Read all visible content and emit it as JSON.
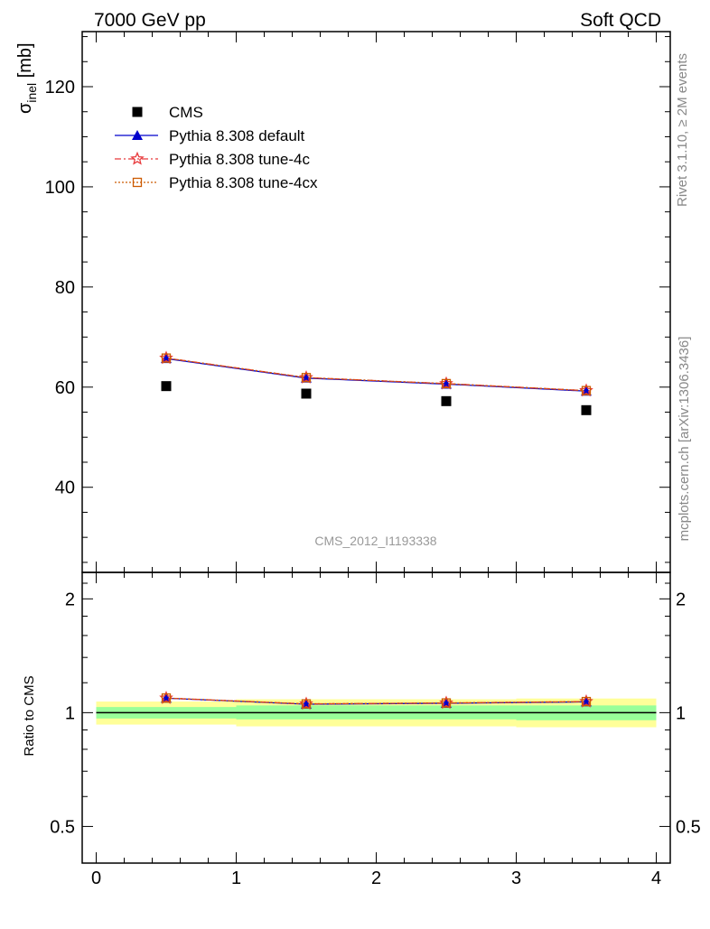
{
  "header": {
    "left": "7000 GeV pp",
    "right": "Soft QCD"
  },
  "side_labels": {
    "rivet": "Rivet 3.1.10, ≥ 2M events",
    "mcplots": "mcplots.cern.ch [arXiv:1306.3436]"
  },
  "analysis_id": "CMS_2012_I1193338",
  "colors": {
    "cms": "#000000",
    "default": "#0000cc",
    "tune4c": "#e8393b",
    "tune4cx": "#cc5a00",
    "band_outer": "#ffff99",
    "band_inner": "#99ff99"
  },
  "legend": [
    {
      "key": "cms",
      "label": "CMS"
    },
    {
      "key": "default",
      "label": "Pythia 8.308 default"
    },
    {
      "key": "tune4c",
      "label": "Pythia 8.308 tune-4c"
    },
    {
      "key": "tune4cx",
      "label": "Pythia 8.308 tune-4cx"
    }
  ],
  "chart_data": [
    {
      "type": "scatter",
      "panel": "main",
      "ylabel": "σinel [mb]",
      "ylabel_main": "σ",
      "ylabel_sub": "inel",
      "ylabel_unit": " [mb]",
      "xlim": [
        -0.1,
        4.1
      ],
      "ylim": [
        23,
        131
      ],
      "yticks": [
        40,
        60,
        80,
        100,
        120
      ],
      "xticks": [
        0,
        1,
        2,
        3,
        4
      ],
      "x": [
        0.5,
        1.5,
        2.5,
        3.5
      ],
      "series": [
        {
          "name": "CMS",
          "key": "cms",
          "values": [
            60.2,
            58.7,
            57.2,
            55.4
          ]
        },
        {
          "name": "Pythia 8.308 default",
          "key": "default",
          "values": [
            65.7,
            61.8,
            60.6,
            59.2
          ]
        },
        {
          "name": "Pythia 8.308 tune-4c",
          "key": "tune4c",
          "values": [
            65.8,
            61.9,
            60.7,
            59.3
          ]
        },
        {
          "name": "Pythia 8.308 tune-4cx",
          "key": "tune4cx",
          "values": [
            65.8,
            61.9,
            60.7,
            59.3
          ]
        }
      ]
    },
    {
      "type": "line",
      "panel": "ratio",
      "ylabel": "Ratio to CMS",
      "xlim": [
        -0.1,
        4.1
      ],
      "ylim": [
        0.4,
        2.35
      ],
      "yticks": [
        0.5,
        1,
        2
      ],
      "ytick_labels": [
        "0.5",
        "1",
        "2"
      ],
      "xticks": [
        0,
        1,
        2,
        3,
        4
      ],
      "xtick_labels": [
        "0",
        "1",
        "2",
        "3",
        "4"
      ],
      "x": [
        0.5,
        1.5,
        2.5,
        3.5
      ],
      "bands": [
        {
          "xmin": 0,
          "xmax": 1,
          "outer": [
            0.93,
            1.07
          ],
          "inner": [
            0.965,
            1.035
          ]
        },
        {
          "xmin": 1,
          "xmax": 2,
          "outer": [
            0.92,
            1.085
          ],
          "inner": [
            0.96,
            1.045
          ]
        },
        {
          "xmin": 2,
          "xmax": 3,
          "outer": [
            0.92,
            1.085
          ],
          "inner": [
            0.96,
            1.045
          ]
        },
        {
          "xmin": 3,
          "xmax": 4,
          "outer": [
            0.915,
            1.09
          ],
          "inner": [
            0.955,
            1.045
          ]
        }
      ],
      "series": [
        {
          "name": "Pythia 8.308 default",
          "key": "default",
          "values": [
            1.092,
            1.053,
            1.059,
            1.068
          ]
        },
        {
          "name": "Pythia 8.308 tune-4c",
          "key": "tune4c",
          "values": [
            1.093,
            1.055,
            1.061,
            1.07
          ]
        },
        {
          "name": "Pythia 8.308 tune-4cx",
          "key": "tune4cx",
          "values": [
            1.093,
            1.055,
            1.061,
            1.07
          ]
        }
      ]
    }
  ]
}
